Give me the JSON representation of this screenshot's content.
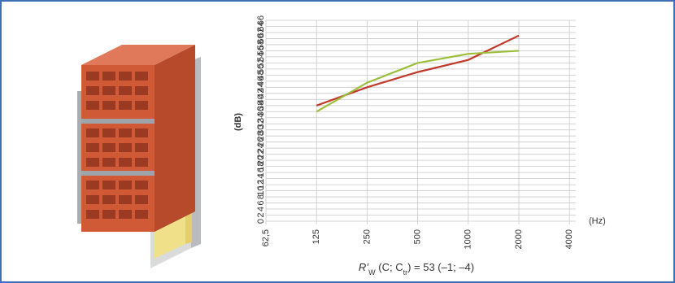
{
  "chart_data": {
    "type": "line",
    "y_label": "(dB)",
    "x_label": "(Hz)",
    "caption": [
      "R’",
      "W",
      " (C; C",
      "tr",
      ") = 53 (–1; –4)"
    ],
    "categories": [
      "62,5",
      "125",
      "250",
      "500",
      "1000",
      "2000",
      "4000"
    ],
    "series": [
      {
        "color": "#c0392b",
        "values": [
          null,
          38,
          44,
          49,
          53,
          61,
          null
        ]
      },
      {
        "color": "#9cbf3b",
        "values": [
          null,
          36,
          45.5,
          52,
          55,
          56,
          null
        ]
      }
    ],
    "ylim": [
      0,
      66
    ],
    "yticks": [
      0,
      2,
      4,
      6,
      8,
      10,
      12,
      14,
      16,
      18,
      20,
      22,
      24,
      26,
      28,
      30,
      32,
      34,
      36,
      38,
      40,
      42,
      44,
      46,
      48,
      50,
      52,
      54,
      56,
      58,
      60,
      62,
      64,
      66
    ],
    "grid": true
  }
}
